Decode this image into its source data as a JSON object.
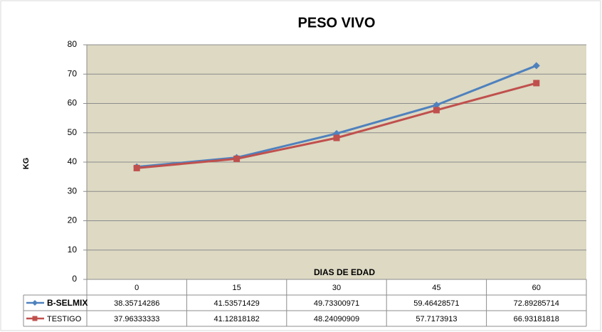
{
  "chart_data": {
    "type": "line",
    "title": "PESO VIVO",
    "x_label": "DIAS DE EDAD",
    "y_label": "KG",
    "categories": [
      "0",
      "15",
      "30",
      "45",
      "60"
    ],
    "series": [
      {
        "name": "B-SELMIX",
        "color": "#4f81bd",
        "marker": "diamond",
        "values": [
          38.35714286,
          41.53571429,
          49.73300971,
          59.46428571,
          72.89285714
        ]
      },
      {
        "name": "TESTIGO",
        "color": "#c0504d",
        "marker": "square",
        "values": [
          37.96333333,
          41.12818182,
          48.24090909,
          57.7173913,
          66.93181818
        ]
      }
    ],
    "ylim": [
      0,
      80
    ],
    "yticks": [
      0,
      10,
      20,
      30,
      40,
      50,
      60,
      70,
      80
    ],
    "grid": true,
    "data_table": true
  }
}
